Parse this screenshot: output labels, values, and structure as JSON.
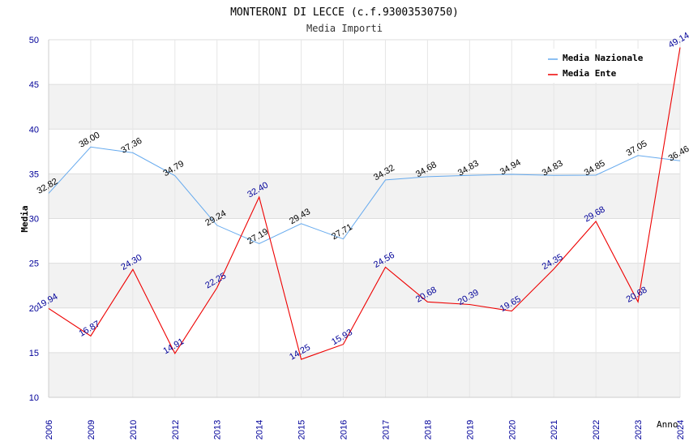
{
  "chart_data": {
    "type": "line",
    "title": "MONTERONI DI LECCE (c.f.93003530750)",
    "subtitle": "Media Importi",
    "ylabel": "Media",
    "xlabel": "Anno",
    "ylim": [
      10,
      50
    ],
    "yticks": [
      "10",
      "15",
      "20",
      "25",
      "30",
      "35",
      "40",
      "45",
      "50"
    ],
    "categories": [
      "2006",
      "2009",
      "2010",
      "2012",
      "2013",
      "2014",
      "2015",
      "2016",
      "2017",
      "2018",
      "2019",
      "2020",
      "2021",
      "2022",
      "2023",
      "2024"
    ],
    "series": [
      {
        "name": "Media Nazionale",
        "color": "#66aaee",
        "values": [
          32.82,
          38.0,
          37.36,
          34.79,
          29.24,
          27.19,
          29.43,
          27.71,
          34.32,
          34.68,
          34.83,
          34.94,
          34.83,
          34.85,
          37.05,
          36.46
        ],
        "labels": [
          "32.82",
          "38.00",
          "37.36",
          "34.79",
          "29.24",
          "27.19",
          "29.43",
          "27.71",
          "34.32",
          "34.68",
          "34.83",
          "34.94",
          "34.83",
          "34.85",
          "37.05",
          "36.46"
        ]
      },
      {
        "name": "Media Ente",
        "color": "#ee0000",
        "values": [
          19.94,
          16.87,
          24.3,
          14.91,
          22.25,
          32.4,
          14.25,
          15.93,
          24.56,
          20.68,
          20.39,
          19.65,
          24.35,
          29.68,
          20.68,
          49.14
        ],
        "labels": [
          "19.94",
          "16.87",
          "24.30",
          "14.91",
          "22.25",
          "32.40",
          "14.25",
          "15.93",
          "24.56",
          "20.68",
          "20.39",
          "19.65",
          "24.35",
          "29.68",
          "20.68",
          "49.14"
        ]
      }
    ],
    "grid": true,
    "legend": "top-right"
  }
}
